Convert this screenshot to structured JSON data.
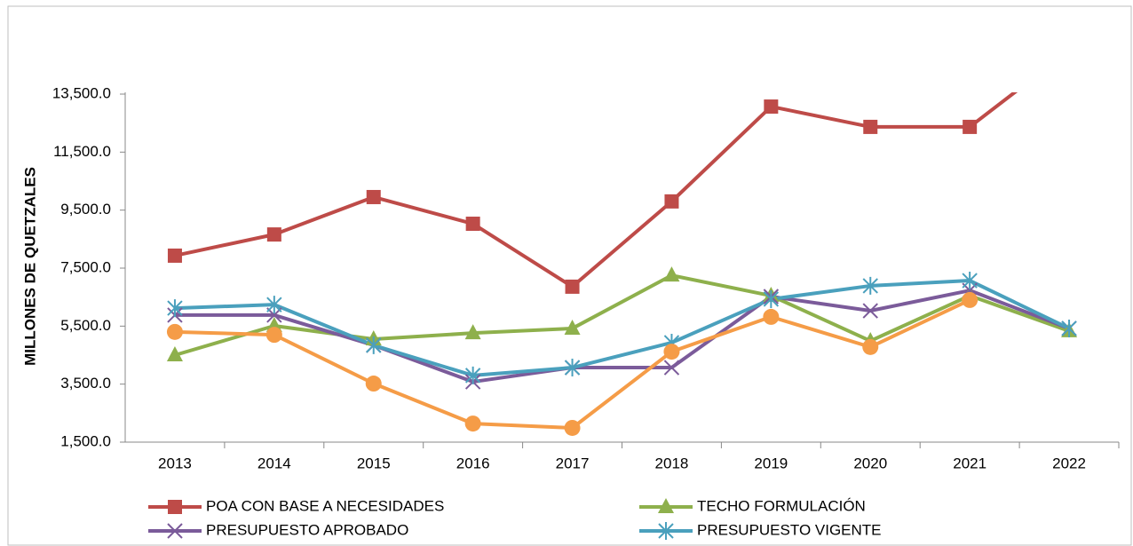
{
  "chart_data": {
    "type": "line",
    "y_label": "MILLONES DE QUETZALES",
    "categories": [
      "2013",
      "2014",
      "2015",
      "2016",
      "2017",
      "2018",
      "2019",
      "2020",
      "2021",
      "2022"
    ],
    "ylim": [
      1500,
      13500
    ],
    "yticks": [
      {
        "value": 1500,
        "label": "1,500.0"
      },
      {
        "value": 3500,
        "label": "3,500.0"
      },
      {
        "value": 5500,
        "label": "5,500.0"
      },
      {
        "value": 7500,
        "label": "7,500.0"
      },
      {
        "value": 9500,
        "label": "9,500.0"
      },
      {
        "value": 11500,
        "label": "11,500.0"
      },
      {
        "value": 13500,
        "label": "13,500.0"
      }
    ],
    "grid": false,
    "legend": "bottom",
    "series": [
      {
        "name": "POA CON BASE A NECESIDADES",
        "color": "#be4b48",
        "marker": "square",
        "values": [
          7930,
          8660,
          9950,
          9030,
          6860,
          9800,
          13070,
          12370,
          12370,
          15000
        ]
      },
      {
        "name": "TECHO FORMULACIÓN",
        "color": "#8eb04c",
        "marker": "triangle",
        "values": [
          4500,
          5510,
          5050,
          5260,
          5420,
          7250,
          6550,
          4990,
          6550,
          5330
        ]
      },
      {
        "name": "PRESUPUESTO APROBADO",
        "color": "#7b5b9a",
        "marker": "x",
        "values": [
          5880,
          5880,
          4840,
          3580,
          4070,
          4070,
          6520,
          6030,
          6730,
          5420
        ]
      },
      {
        "name": "PRESUPUESTO VIGENTE",
        "color": "#4aa0bd",
        "marker": "asterisk",
        "values": [
          6120,
          6240,
          4840,
          3800,
          4070,
          4930,
          6430,
          6890,
          7070,
          5420
        ]
      },
      {
        "color": "#f59c47",
        "marker": "circle",
        "values": [
          5300,
          5200,
          3520,
          2140,
          1990,
          4620,
          5820,
          4780,
          6400,
          null
        ]
      }
    ]
  }
}
